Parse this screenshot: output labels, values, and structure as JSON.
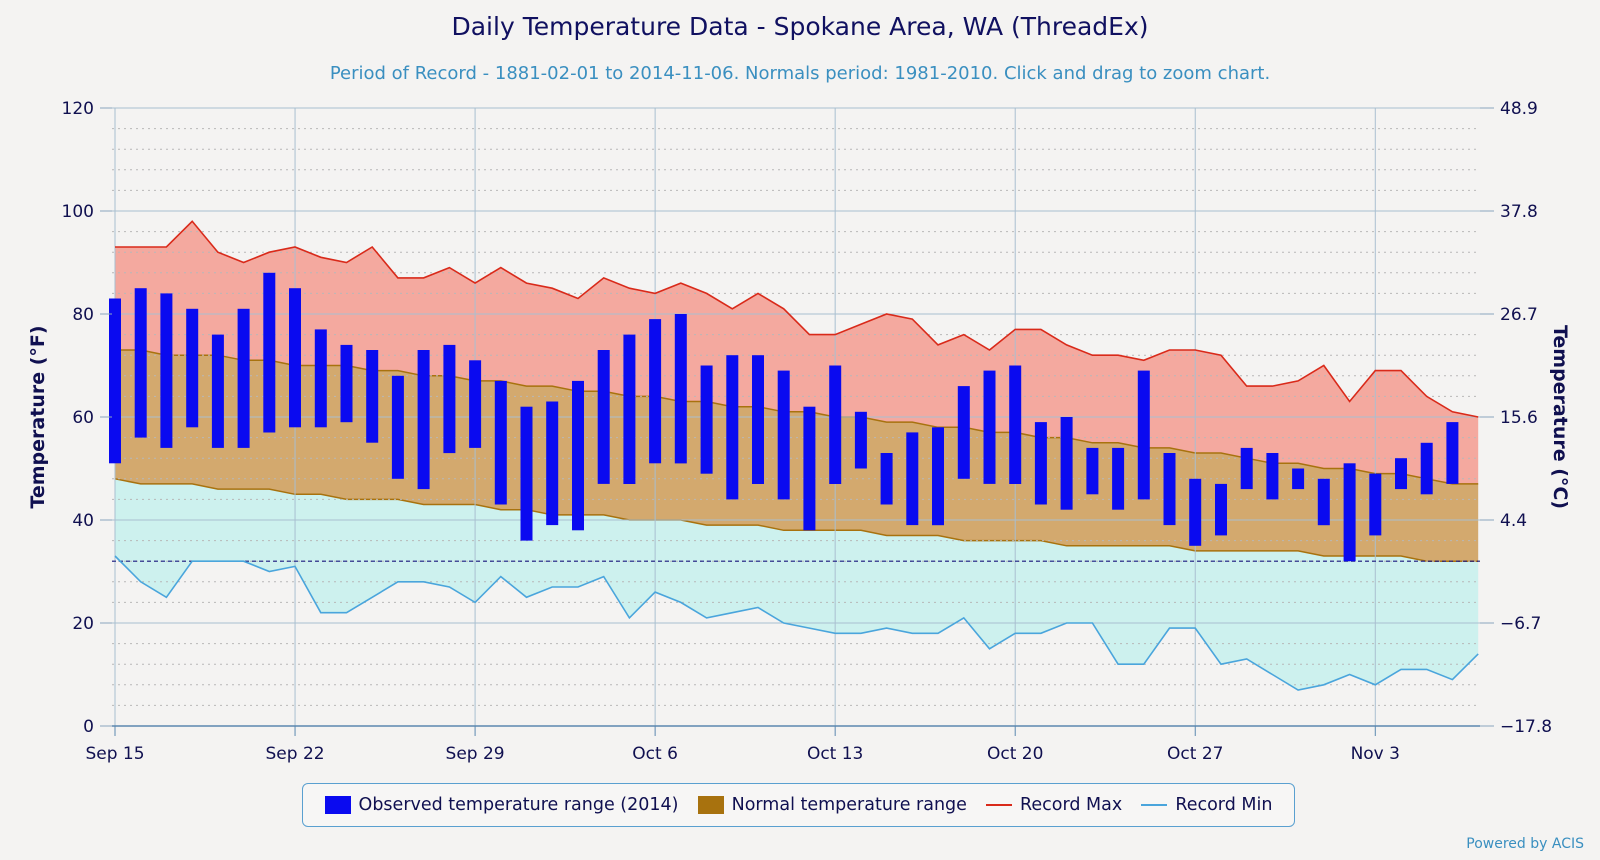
{
  "chart_data": {
    "type": "bar",
    "title": "Daily Temperature Data - Spokane Area, WA (ThreadEx)",
    "subtitle": "Period of Record - 1881-02-01 to 2014-11-06. Normals period: 1981-2010. Click and drag to zoom chart.",
    "ylabel": "Temperature (°F)",
    "ylabel_right": "Temperature (°C)",
    "ylim": [
      0,
      120
    ],
    "yticks": [
      "0",
      "20",
      "40",
      "60",
      "80",
      "100",
      "120"
    ],
    "yticks_right": [
      "−17.8",
      "−6.7",
      "4.4",
      "15.6",
      "26.7",
      "37.8",
      "48.9"
    ],
    "xtick_labels": [
      {
        "day": 0,
        "label": "Sep 15"
      },
      {
        "day": 7,
        "label": "Sep 22"
      },
      {
        "day": 14,
        "label": "Sep 29"
      },
      {
        "day": 21,
        "label": "Oct 6"
      },
      {
        "day": 28,
        "label": "Oct 13"
      },
      {
        "day": 35,
        "label": "Oct 20"
      },
      {
        "day": 42,
        "label": "Oct 27"
      },
      {
        "day": 49,
        "label": "Nov 3"
      }
    ],
    "freezing_line": 32,
    "start_date": "Sep 15",
    "series": [
      {
        "name": "Observed temperature range (2014)",
        "low": [
          51,
          56,
          54,
          58,
          54,
          54,
          57,
          58,
          58,
          59,
          55,
          48,
          46,
          53,
          54,
          43,
          36,
          39,
          38,
          47,
          47,
          51,
          51,
          49,
          44,
          47,
          44,
          38,
          47,
          50,
          43,
          39,
          39,
          48,
          47,
          47,
          43,
          42,
          45,
          42,
          44,
          39,
          35,
          37,
          46,
          44,
          46,
          39,
          32,
          37,
          46,
          45,
          47
        ],
        "high": [
          83,
          85,
          84,
          81,
          76,
          81,
          88,
          85,
          77,
          74,
          73,
          68,
          73,
          74,
          71,
          67,
          62,
          63,
          67,
          73,
          76,
          79,
          80,
          70,
          72,
          72,
          69,
          62,
          70,
          61,
          53,
          57,
          58,
          66,
          69,
          70,
          59,
          60,
          54,
          54,
          69,
          53,
          48,
          47,
          54,
          53,
          50,
          48,
          51,
          49,
          52,
          55,
          59
        ]
      },
      {
        "name": "Normal temperature range",
        "low": [
          48,
          47,
          47,
          47,
          46,
          46,
          46,
          45,
          45,
          44,
          44,
          44,
          43,
          43,
          43,
          42,
          42,
          41,
          41,
          41,
          40,
          40,
          40,
          39,
          39,
          39,
          38,
          38,
          38,
          38,
          37,
          37,
          37,
          36,
          36,
          36,
          36,
          35,
          35,
          35,
          35,
          35,
          34,
          34,
          34,
          34,
          34,
          33,
          33,
          33,
          33,
          32,
          32,
          32
        ],
        "high": [
          73,
          73,
          72,
          72,
          72,
          71,
          71,
          70,
          70,
          70,
          69,
          69,
          68,
          68,
          67,
          67,
          66,
          66,
          65,
          65,
          64,
          64,
          63,
          63,
          62,
          62,
          61,
          61,
          60,
          60,
          59,
          59,
          58,
          58,
          57,
          57,
          56,
          56,
          55,
          55,
          54,
          54,
          53,
          53,
          52,
          51,
          51,
          50,
          50,
          49,
          49,
          48,
          47,
          47
        ]
      },
      {
        "name": "Record Max",
        "values": [
          93,
          93,
          93,
          98,
          92,
          90,
          92,
          93,
          91,
          90,
          93,
          87,
          87,
          89,
          86,
          89,
          86,
          85,
          83,
          87,
          85,
          84,
          86,
          84,
          81,
          84,
          81,
          76,
          76,
          78,
          80,
          79,
          74,
          76,
          73,
          77,
          77,
          74,
          72,
          72,
          71,
          73,
          73,
          72,
          66,
          66,
          67,
          70,
          63,
          69,
          69,
          64,
          61,
          60
        ]
      },
      {
        "name": "Record Min",
        "values": [
          33,
          28,
          25,
          32,
          32,
          32,
          30,
          31,
          22,
          22,
          25,
          28,
          28,
          27,
          24,
          29,
          25,
          27,
          27,
          29,
          21,
          26,
          24,
          21,
          22,
          23,
          20,
          19,
          18,
          18,
          19,
          18,
          18,
          21,
          15,
          18,
          18,
          20,
          20,
          12,
          12,
          19,
          19,
          12,
          13,
          10,
          7,
          8,
          10,
          8,
          11,
          11,
          9,
          14
        ]
      }
    ]
  },
  "legend": {
    "observed": "Observed temperature range (2014)",
    "normal": "Normal temperature range",
    "record_max": "Record Max",
    "record_min": "Record Min"
  },
  "credits": "Powered by ACIS",
  "colors": {
    "observed": "#0a0af0",
    "normal": "#a8720e",
    "record_max_line": "#d92a1a",
    "record_max_fill": "#f4a99f",
    "record_min_line": "#4aa5dc",
    "record_min_fill": "#cdf1ee",
    "normal_fill": "#d3a96e",
    "grid": "#a9bfd0",
    "axis_text": "#101050"
  }
}
